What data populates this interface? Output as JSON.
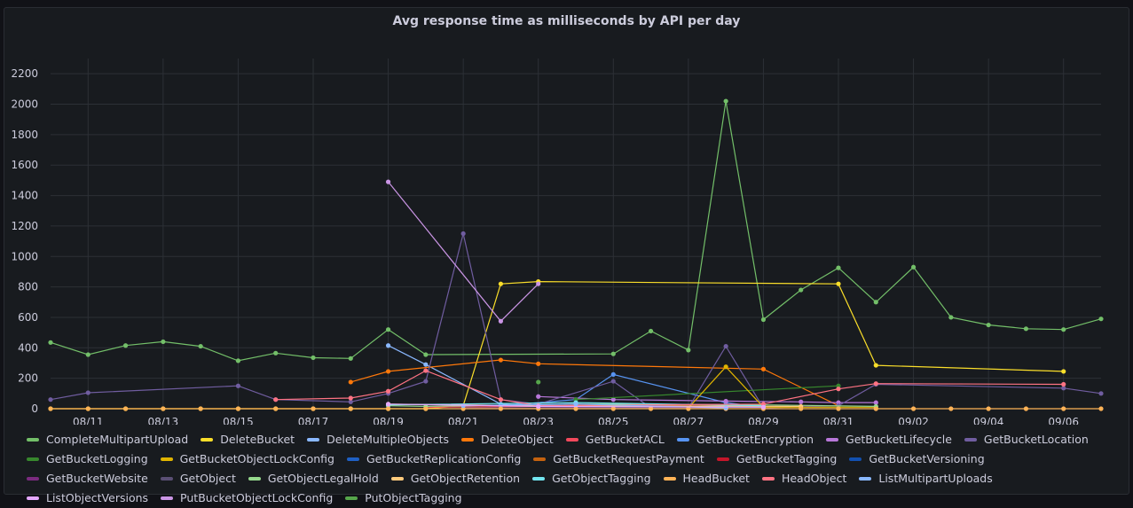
{
  "panel": {
    "title": "Avg response time as milliseconds by API per day"
  },
  "chart_data": {
    "type": "line",
    "title": "Avg response time as milliseconds by API per day",
    "xlabel": "",
    "ylabel": "",
    "ylim": [
      0,
      2300
    ],
    "xlim": [
      "2024-08-10",
      "2024-09-07"
    ],
    "yticks": [
      0,
      200,
      400,
      600,
      800,
      1000,
      1200,
      1400,
      1600,
      1800,
      2000,
      2200
    ],
    "xticks": [
      "2024-08-11",
      "2024-08-13",
      "2024-08-15",
      "2024-08-17",
      "2024-08-19",
      "2024-08-21",
      "2024-08-23",
      "2024-08-25",
      "2024-08-27",
      "2024-08-29",
      "2024-08-31",
      "2024-09-02",
      "2024-09-04",
      "2024-09-06"
    ],
    "xtick_labels": [
      "08/11",
      "08/13",
      "08/15",
      "08/17",
      "08/19",
      "08/21",
      "08/23",
      "08/25",
      "08/27",
      "08/29",
      "08/31",
      "09/02",
      "09/04",
      "09/06"
    ],
    "grid": true,
    "legend_position": "bottom",
    "series": [
      {
        "name": "CompleteMultipartUpload",
        "color": "#73bf69",
        "points": [
          [
            "2024-08-10",
            435
          ],
          [
            "2024-08-11",
            355
          ],
          [
            "2024-08-12",
            415
          ],
          [
            "2024-08-13",
            440
          ],
          [
            "2024-08-14",
            410
          ],
          [
            "2024-08-15",
            315
          ],
          [
            "2024-08-16",
            365
          ],
          [
            "2024-08-17",
            335
          ],
          [
            "2024-08-18",
            330
          ],
          [
            "2024-08-19",
            520
          ],
          [
            "2024-08-20",
            355
          ],
          [
            "2024-08-25",
            360
          ],
          [
            "2024-08-26",
            510
          ],
          [
            "2024-08-27",
            385
          ],
          [
            "2024-08-28",
            2020
          ],
          [
            "2024-08-29",
            585
          ],
          [
            "2024-08-30",
            780
          ],
          [
            "2024-08-31",
            925
          ],
          [
            "2024-09-01",
            700
          ],
          [
            "2024-09-02",
            930
          ],
          [
            "2024-09-03",
            600
          ],
          [
            "2024-09-04",
            550
          ],
          [
            "2024-09-05",
            525
          ],
          [
            "2024-09-06",
            520
          ],
          [
            "2024-09-07",
            590
          ]
        ]
      },
      {
        "name": "DeleteBucket",
        "color": "#fade2a",
        "points": [
          [
            "2024-08-10",
            0
          ],
          [
            "2024-08-11",
            0
          ],
          [
            "2024-08-12",
            0
          ],
          [
            "2024-08-13",
            0
          ],
          [
            "2024-08-14",
            0
          ],
          [
            "2024-08-15",
            0
          ],
          [
            "2024-08-16",
            0
          ],
          [
            "2024-08-17",
            0
          ],
          [
            "2024-08-18",
            0
          ],
          [
            "2024-08-19",
            0
          ],
          [
            "2024-08-20",
            0
          ],
          [
            "2024-08-21",
            20
          ],
          [
            "2024-08-22",
            820
          ],
          [
            "2024-08-23",
            835
          ],
          [
            "2024-08-31",
            820
          ],
          [
            "2024-09-01",
            285
          ],
          [
            "2024-09-06",
            245
          ]
        ]
      },
      {
        "name": "DeleteMultipleObjects",
        "color": "#8ab8ff",
        "points": [
          [
            "2024-08-19",
            415
          ],
          [
            "2024-08-20",
            290
          ],
          [
            "2024-08-22",
            30
          ],
          [
            "2024-08-23",
            20
          ],
          [
            "2024-08-25",
            20
          ]
        ]
      },
      {
        "name": "DeleteObject",
        "color": "#ff780a",
        "points": [
          [
            "2024-08-18",
            175
          ],
          [
            "2024-08-19",
            245
          ],
          [
            "2024-08-22",
            320
          ],
          [
            "2024-08-23",
            295
          ],
          [
            "2024-08-29",
            260
          ],
          [
            "2024-08-31",
            20
          ]
        ]
      },
      {
        "name": "GetBucketACL",
        "color": "#f2495c",
        "points": [
          [
            "2024-08-20",
            10
          ],
          [
            "2024-08-23",
            15
          ],
          [
            "2024-08-25",
            10
          ]
        ]
      },
      {
        "name": "GetBucketEncryption",
        "color": "#5794f2",
        "points": [
          [
            "2024-08-22",
            20
          ],
          [
            "2024-08-24",
            60
          ],
          [
            "2024-08-25",
            225
          ],
          [
            "2024-08-28",
            40
          ],
          [
            "2024-08-29",
            10
          ]
        ]
      },
      {
        "name": "GetBucketLifecycle",
        "color": "#b877d9",
        "points": [
          [
            "2024-08-23",
            80
          ],
          [
            "2024-08-25",
            60
          ],
          [
            "2024-08-28",
            50
          ],
          [
            "2024-08-30",
            45
          ],
          [
            "2024-08-31",
            40
          ],
          [
            "2024-09-01",
            40
          ]
        ]
      },
      {
        "name": "GetBucketLocation",
        "color": "#705da0",
        "points": [
          [
            "2024-08-10",
            60
          ],
          [
            "2024-08-11",
            105
          ],
          [
            "2024-08-15",
            150
          ],
          [
            "2024-08-16",
            60
          ],
          [
            "2024-08-18",
            45
          ],
          [
            "2024-08-19",
            100
          ],
          [
            "2024-08-20",
            180
          ],
          [
            "2024-08-21",
            1150
          ],
          [
            "2024-08-22",
            60
          ],
          [
            "2024-08-23",
            30
          ],
          [
            "2024-08-25",
            180
          ],
          [
            "2024-08-26",
            5
          ],
          [
            "2024-08-27",
            5
          ],
          [
            "2024-08-28",
            410
          ],
          [
            "2024-08-29",
            5
          ],
          [
            "2024-08-31",
            20
          ],
          [
            "2024-09-01",
            160
          ],
          [
            "2024-09-06",
            135
          ],
          [
            "2024-09-07",
            100
          ]
        ]
      },
      {
        "name": "GetBucketLogging",
        "color": "#37872d",
        "points": [
          [
            "2024-08-24",
            60
          ],
          [
            "2024-08-31",
            150
          ]
        ]
      },
      {
        "name": "GetBucketObjectLockConfig",
        "color": "#e0b400",
        "points": [
          [
            "2024-08-27",
            5
          ],
          [
            "2024-08-28",
            275
          ],
          [
            "2024-08-29",
            10
          ],
          [
            "2024-09-01",
            10
          ]
        ]
      },
      {
        "name": "GetBucketReplicationConfig",
        "color": "#1f60c4",
        "points": [
          [
            "2024-08-24",
            10
          ],
          [
            "2024-08-29",
            10
          ]
        ]
      },
      {
        "name": "GetBucketRequestPayment",
        "color": "#c4620f",
        "points": [
          [
            "2024-08-24",
            15
          ],
          [
            "2024-08-29",
            20
          ]
        ]
      },
      {
        "name": "GetBucketTagging",
        "color": "#c4162a",
        "points": [
          [
            "2024-08-24",
            10
          ],
          [
            "2024-08-28",
            15
          ]
        ]
      },
      {
        "name": "GetBucketVersioning",
        "color": "#1250b0",
        "points": [
          [
            "2024-08-23",
            10
          ],
          [
            "2024-08-28",
            10
          ]
        ]
      },
      {
        "name": "GetBucketWebsite",
        "color": "#7b2b7f",
        "points": [
          [
            "2024-08-23",
            10
          ],
          [
            "2024-08-29",
            15
          ]
        ]
      },
      {
        "name": "GetObject",
        "color": "#5a4f74",
        "points": [
          [
            "2024-08-21",
            5
          ],
          [
            "2024-08-28",
            5
          ]
        ]
      },
      {
        "name": "GetObjectLegalHold",
        "color": "#96d98d",
        "points": [
          [
            "2024-08-19",
            20
          ],
          [
            "2024-08-20",
            15
          ],
          [
            "2024-08-24",
            30
          ],
          [
            "2024-08-29",
            25
          ],
          [
            "2024-09-01",
            15
          ]
        ]
      },
      {
        "name": "GetObjectRetention",
        "color": "#ffcb7d",
        "points": [
          [
            "2024-08-19",
            30
          ],
          [
            "2024-08-23",
            20
          ],
          [
            "2024-08-30",
            15
          ]
        ]
      },
      {
        "name": "GetObjectTagging",
        "color": "#73e5ef",
        "points": [
          [
            "2024-08-19",
            25
          ],
          [
            "2024-08-24",
            40
          ],
          [
            "2024-08-29",
            20
          ]
        ]
      },
      {
        "name": "HeadBucket",
        "color": "#ffb357",
        "points": [
          [
            "2024-08-10",
            0
          ],
          [
            "2024-08-11",
            0
          ],
          [
            "2024-08-12",
            0
          ],
          [
            "2024-08-13",
            0
          ],
          [
            "2024-08-14",
            0
          ],
          [
            "2024-08-15",
            0
          ],
          [
            "2024-08-16",
            0
          ],
          [
            "2024-08-17",
            0
          ],
          [
            "2024-08-18",
            0
          ],
          [
            "2024-08-19",
            0
          ],
          [
            "2024-08-20",
            0
          ],
          [
            "2024-08-21",
            0
          ],
          [
            "2024-08-22",
            0
          ],
          [
            "2024-08-23",
            0
          ],
          [
            "2024-08-24",
            0
          ],
          [
            "2024-08-25",
            0
          ],
          [
            "2024-08-26",
            0
          ],
          [
            "2024-08-27",
            0
          ],
          [
            "2024-08-28",
            0
          ],
          [
            "2024-08-29",
            0
          ],
          [
            "2024-08-30",
            0
          ],
          [
            "2024-08-31",
            0
          ],
          [
            "2024-09-01",
            0
          ],
          [
            "2024-09-02",
            0
          ],
          [
            "2024-09-03",
            0
          ],
          [
            "2024-09-04",
            0
          ],
          [
            "2024-09-05",
            0
          ],
          [
            "2024-09-06",
            0
          ],
          [
            "2024-09-07",
            0
          ]
        ]
      },
      {
        "name": "HeadObject",
        "color": "#ff7383",
        "points": [
          [
            "2024-08-16",
            60
          ],
          [
            "2024-08-18",
            70
          ],
          [
            "2024-08-19",
            115
          ],
          [
            "2024-08-20",
            250
          ],
          [
            "2024-08-22",
            60
          ],
          [
            "2024-08-23",
            20
          ],
          [
            "2024-08-29",
            30
          ],
          [
            "2024-08-31",
            130
          ],
          [
            "2024-09-01",
            165
          ],
          [
            "2024-09-06",
            160
          ]
        ]
      },
      {
        "name": "ListMultipartUploads",
        "color": "#8ab8ff",
        "points": [
          [
            "2024-08-21",
            20
          ],
          [
            "2024-08-24",
            30
          ],
          [
            "2024-08-28",
            5
          ]
        ]
      },
      {
        "name": "ListObjectVersions",
        "color": "#e5a8ff",
        "points": [
          [
            "2024-08-19",
            30
          ],
          [
            "2024-08-23",
            15
          ],
          [
            "2024-08-29",
            10
          ]
        ]
      },
      {
        "name": "PutBucketObjectLockConfig",
        "color": "#ca95e5",
        "points": [
          [
            "2024-08-19",
            1490
          ],
          [
            "2024-08-22",
            575
          ],
          [
            "2024-08-23",
            820
          ]
        ]
      },
      {
        "name": "PutObjectTagging",
        "color": "#56a64b",
        "points": [
          [
            "2024-08-23",
            175
          ]
        ]
      }
    ]
  }
}
